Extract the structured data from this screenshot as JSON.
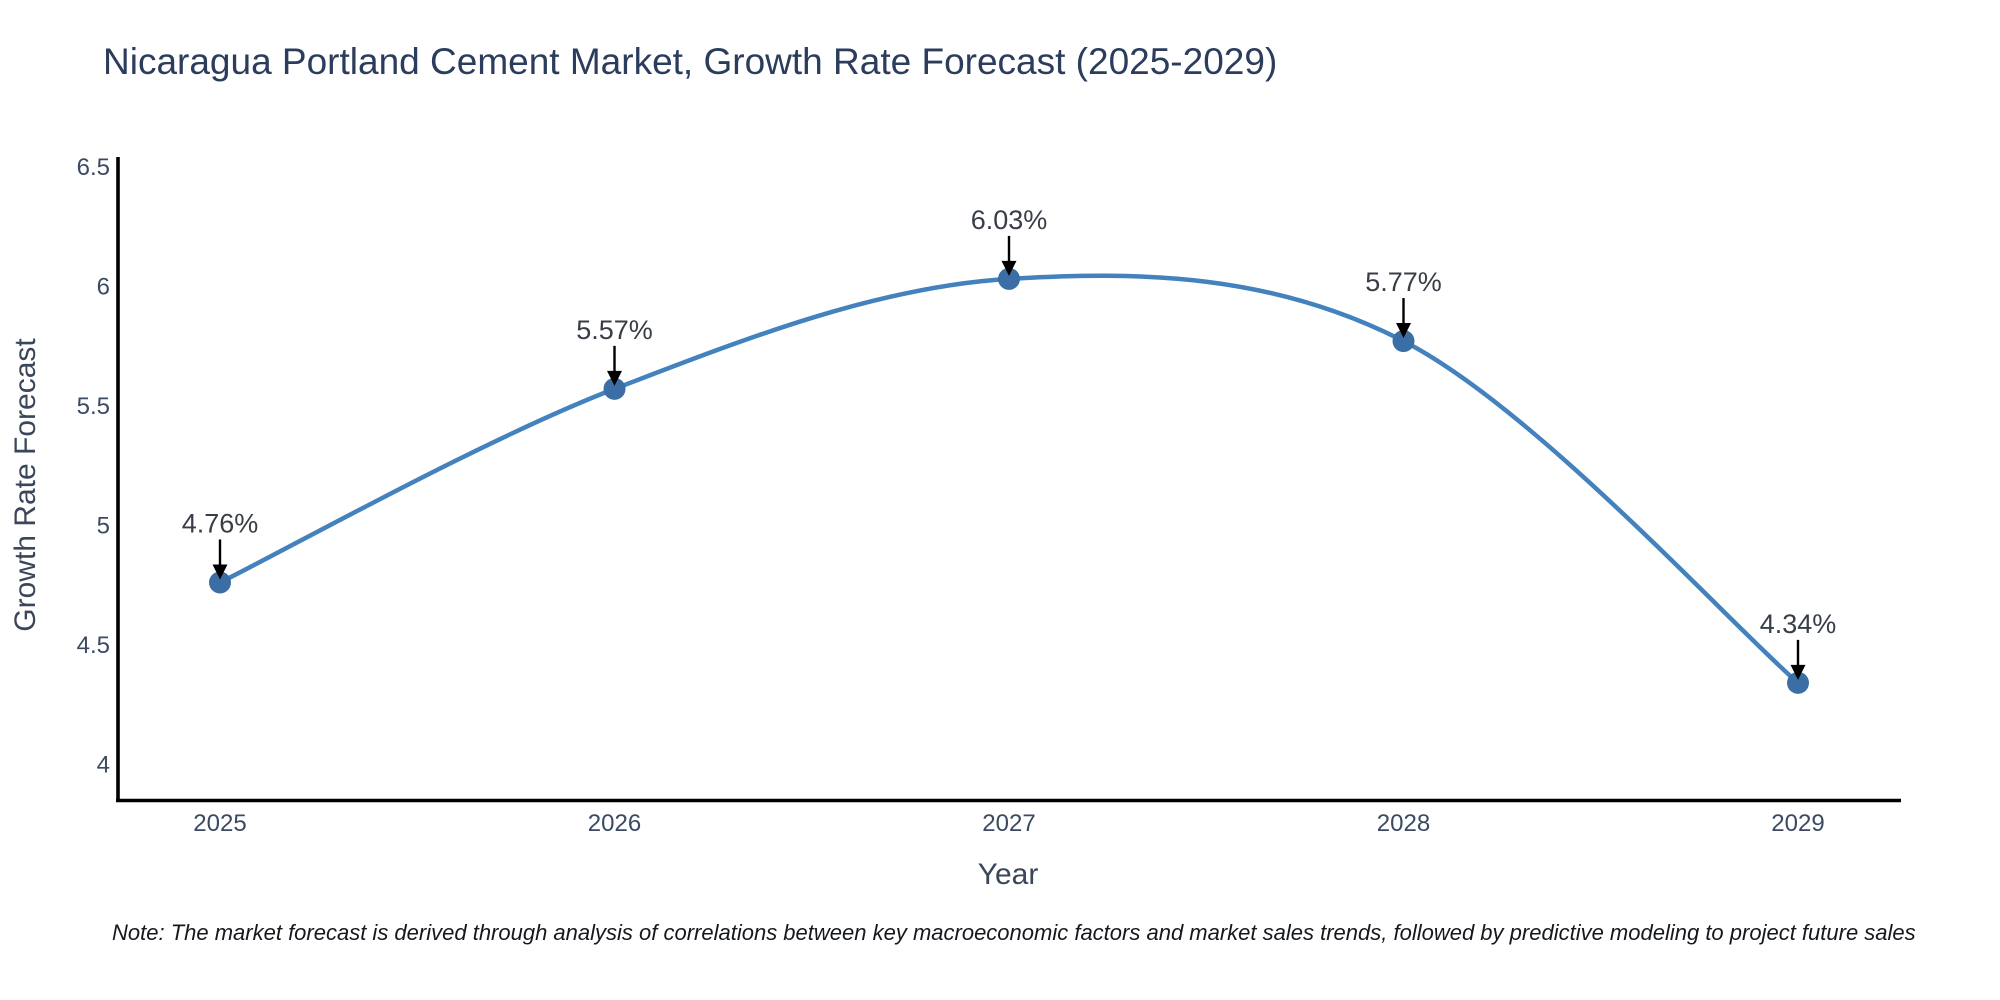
{
  "title": "Nicaragua Portland Cement Market, Growth Rate Forecast (2025-2029)",
  "note": "Note: The market forecast is derived through analysis of correlations between key macroeconomic factors and market sales trends, followed by predictive modeling to project future sales",
  "chart_data": {
    "type": "line",
    "title": "Nicaragua Portland Cement Market, Growth Rate Forecast (2025-2029)",
    "categories": [
      "2025",
      "2026",
      "2027",
      "2028",
      "2029"
    ],
    "values": [
      4.76,
      5.57,
      6.03,
      5.77,
      4.34
    ],
    "point_labels": [
      "4.76%",
      "5.57%",
      "6.03%",
      "5.77%",
      "4.34%"
    ],
    "xlabel": "Year",
    "ylabel": "Growth Rate Forecast",
    "y_ticks": [
      {
        "value": 4,
        "label": "4"
      },
      {
        "value": 4.5,
        "label": "4.5"
      },
      {
        "value": 5,
        "label": "5"
      },
      {
        "value": 5.5,
        "label": "5.5"
      },
      {
        "value": 6,
        "label": "6"
      },
      {
        "value": 6.5,
        "label": "6.5"
      }
    ],
    "ylim": [
      3.85,
      6.54
    ],
    "grid": false,
    "legend": "none",
    "curve": "spline",
    "annotation_style": "value-label-with-down-arrow",
    "colors": {
      "line": "#4382bd",
      "marker": "#3a6ea5",
      "axis": "#000000",
      "arrow": "#000000",
      "title": "#2b3c5c",
      "tick": "#3b4a63",
      "point_label": "#383e47",
      "note": "#15181d",
      "background": "#ffffff"
    }
  }
}
